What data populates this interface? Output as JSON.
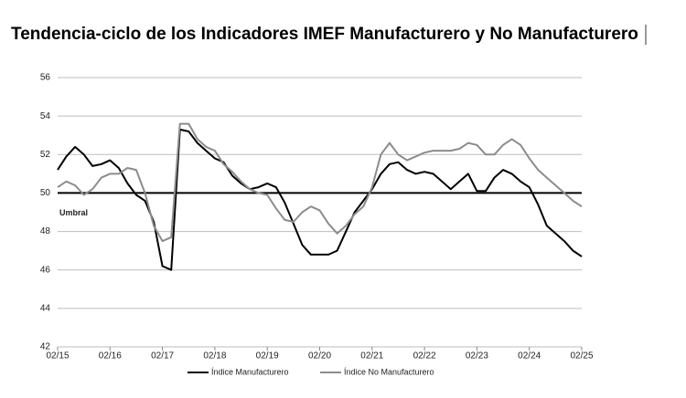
{
  "chart_data": {
    "type": "line",
    "title": "Tendencia-ciclo de los Indicadores IMEF Manufacturero y No Manufacturero",
    "categories": [
      "02/15",
      null,
      null,
      null,
      null,
      null,
      "02/16",
      null,
      null,
      null,
      null,
      null,
      "02/17",
      null,
      null,
      null,
      null,
      null,
      "02/18",
      null,
      null,
      null,
      null,
      null,
      "02/19",
      null,
      null,
      null,
      null,
      null,
      "02/20",
      null,
      null,
      null,
      null,
      null,
      "02/21",
      null,
      null,
      null,
      null,
      null,
      "02/22",
      null,
      null,
      null,
      null,
      null,
      "02/23",
      null,
      null,
      null,
      null,
      null,
      "02/24",
      null,
      null,
      null,
      null,
      null,
      "02/25"
    ],
    "series": [
      {
        "name": "Índice Manufacturero",
        "color": "#000000",
        "values": [
          51.2,
          51.9,
          52.4,
          52.0,
          51.4,
          51.5,
          51.7,
          51.3,
          50.5,
          49.9,
          49.6,
          48.5,
          46.2,
          46.0,
          53.3,
          53.2,
          52.6,
          52.2,
          51.8,
          51.6,
          50.9,
          50.5,
          50.2,
          50.3,
          50.5,
          50.3,
          49.5,
          48.4,
          47.3,
          46.8,
          46.8,
          46.8,
          47.0,
          48.0,
          49.0,
          49.6,
          50.2,
          51.0,
          51.5,
          51.6,
          51.2,
          51.0,
          51.1,
          51.0,
          50.6,
          50.2,
          50.6,
          51.0,
          50.1,
          50.1,
          50.8,
          51.2,
          51.0,
          50.6,
          50.3,
          49.4,
          48.3,
          47.9,
          47.5,
          47.0,
          46.7
        ]
      },
      {
        "name": "Índice No Manufacturero",
        "color": "#8c8c8c",
        "values": [
          50.3,
          50.6,
          50.4,
          49.9,
          50.2,
          50.8,
          51.0,
          51.0,
          51.3,
          51.2,
          50.0,
          48.3,
          47.5,
          47.7,
          53.6,
          53.6,
          52.8,
          52.4,
          52.2,
          51.5,
          51.1,
          50.6,
          50.2,
          50.0,
          49.9,
          49.2,
          48.6,
          48.5,
          49.0,
          49.3,
          49.1,
          48.4,
          47.9,
          48.3,
          48.9,
          49.3,
          50.3,
          52.0,
          52.6,
          52.0,
          51.7,
          51.9,
          52.1,
          52.2,
          52.2,
          52.2,
          52.3,
          52.6,
          52.5,
          52.0,
          52.0,
          52.5,
          52.8,
          52.5,
          51.8,
          51.2,
          50.8,
          50.4,
          50.0,
          49.6,
          49.3
        ]
      }
    ],
    "threshold": {
      "value": 50,
      "label": "Umbral"
    },
    "ylim": [
      42,
      56
    ],
    "yticks": [
      42,
      44,
      46,
      48,
      50,
      52,
      54,
      56
    ],
    "grid": true,
    "legend": "bottom"
  }
}
